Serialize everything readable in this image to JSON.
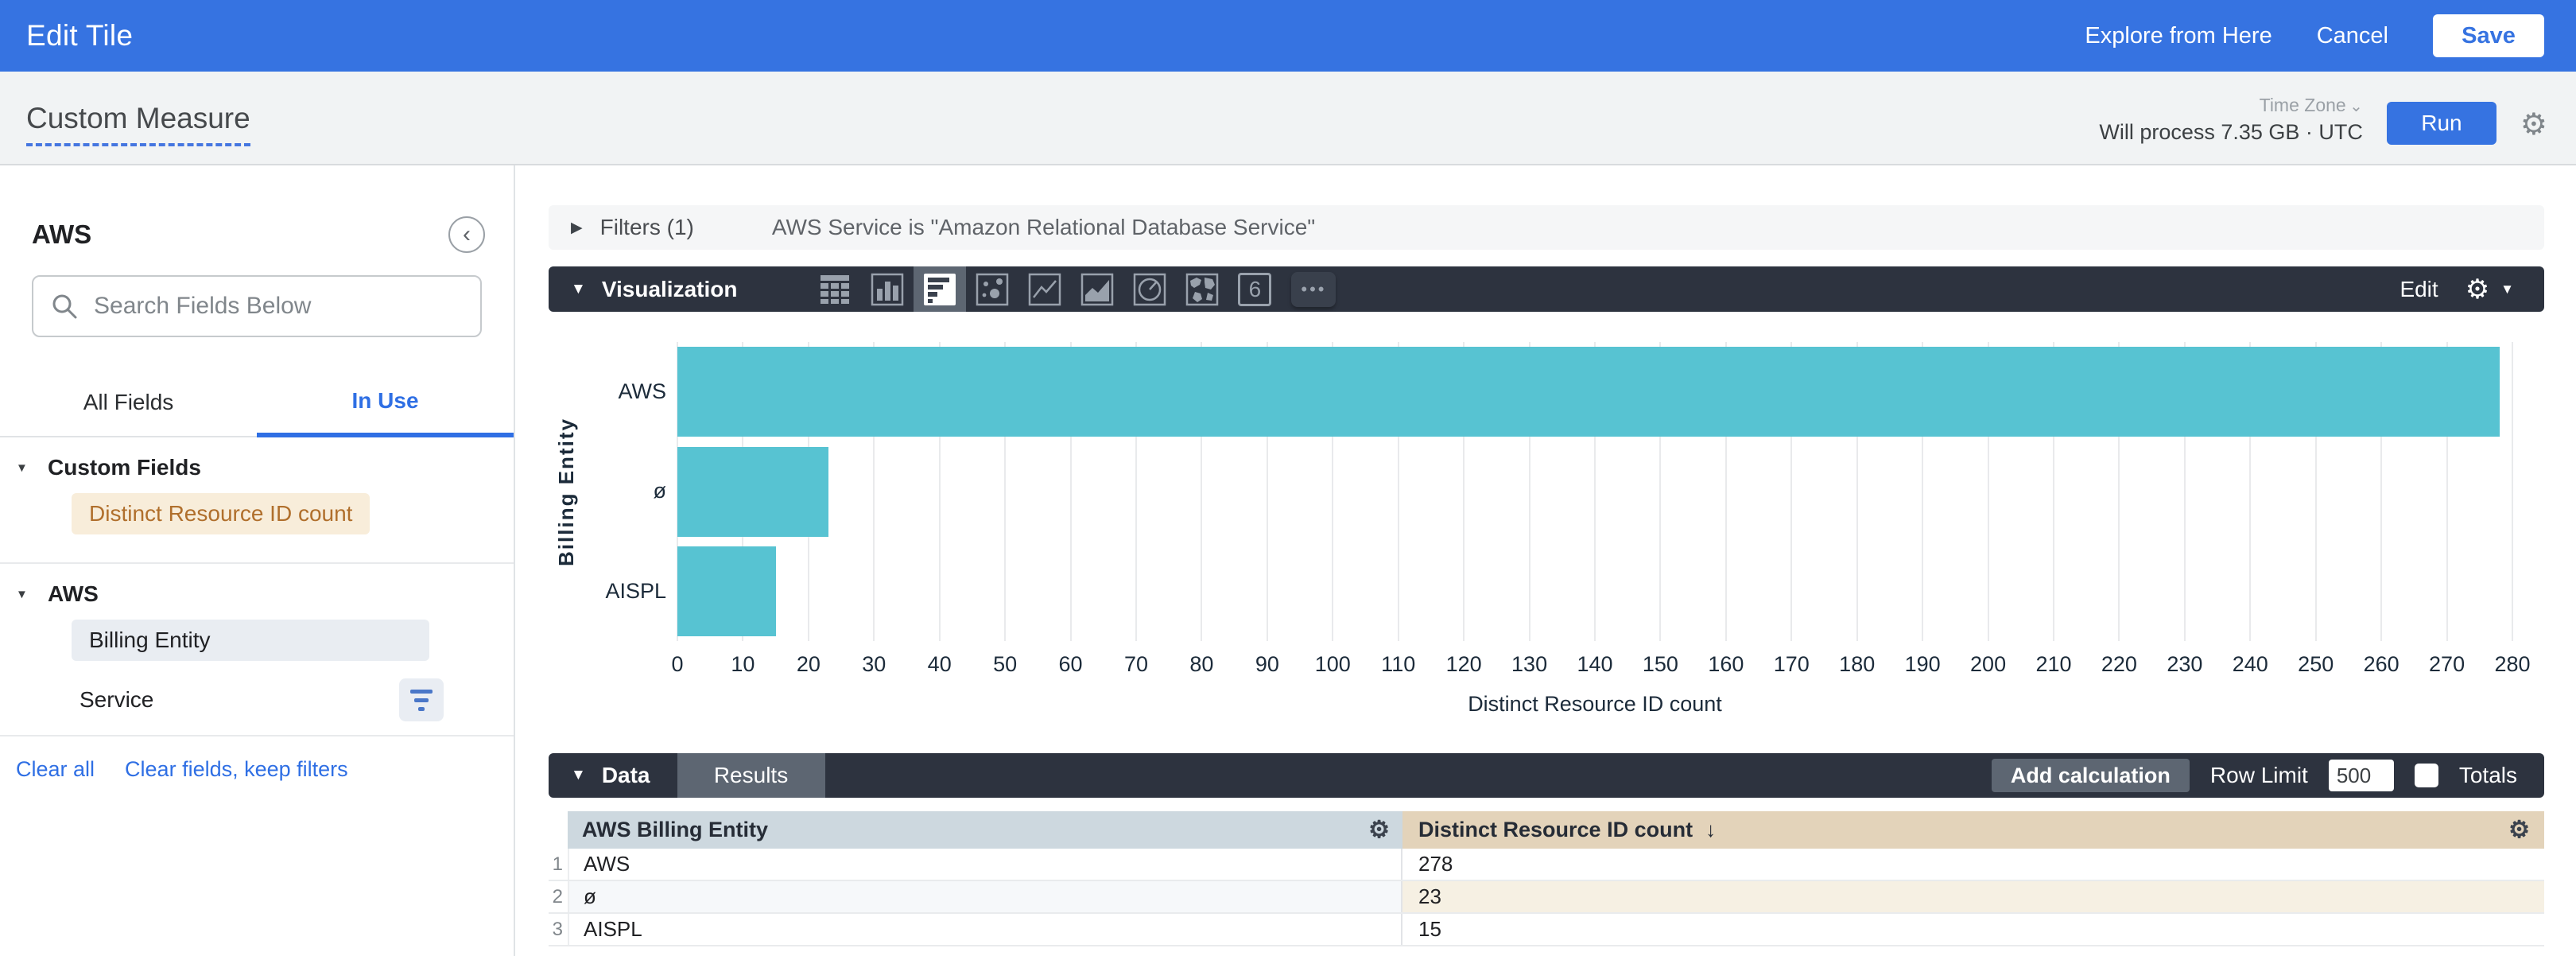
{
  "icons": {
    "caret_right": "▶",
    "caret_down": "▼",
    "chevron_small_down": "⌄",
    "chevron_left": "‹",
    "gear": "⚙",
    "dots": "•••",
    "arrow_down": "↓"
  },
  "top_bar": {
    "title": "Edit Tile",
    "explore": "Explore from Here",
    "cancel": "Cancel",
    "save": "Save"
  },
  "header": {
    "title": "Custom Measure",
    "timezone_label": "Time Zone",
    "process_note": "Will process 7.35 GB · UTC",
    "run": "Run"
  },
  "sidebar": {
    "title": "AWS",
    "search_placeholder": "Search Fields Below",
    "tabs": [
      {
        "label": "All Fields",
        "active": false
      },
      {
        "label": "In Use",
        "active": true
      }
    ],
    "sections": [
      {
        "title": "Custom Fields",
        "items": [
          {
            "label": "Distinct Resource ID count",
            "kind": "measure"
          }
        ]
      },
      {
        "title": "AWS",
        "items": [
          {
            "label": "Billing Entity",
            "kind": "dimension-selected"
          },
          {
            "label": "Service",
            "kind": "plain-with-filter"
          }
        ]
      }
    ],
    "footer_links": [
      "Clear all",
      "Clear fields, keep filters"
    ]
  },
  "filters": {
    "label": "Filters (1)",
    "summary": "AWS Service is \"Amazon Relational Database Service\""
  },
  "visualization": {
    "label": "Visualization",
    "icons": [
      "table",
      "column-chart",
      "bar-chart",
      "scatterplot",
      "line-chart",
      "area-chart",
      "pie-chart",
      "map",
      "single-value",
      "more"
    ],
    "selected": "bar-chart",
    "single_value_glyph": "6",
    "edit": "Edit"
  },
  "chart_data": {
    "type": "bar",
    "orientation": "horizontal",
    "categories": [
      "AWS",
      "ø",
      "AISPL"
    ],
    "values": [
      278,
      23,
      15
    ],
    "title": "",
    "xlabel": "Distinct Resource ID count",
    "ylabel": "Billing Entity",
    "xlim": [
      0,
      280
    ],
    "xtick_step": 10,
    "grid": true,
    "legend": false,
    "bar_color": "#57c3d2"
  },
  "data_section": {
    "label": "Data",
    "tab": "Results",
    "add_calculation": "Add calculation",
    "row_limit_label": "Row Limit",
    "row_limit_value": "500",
    "totals_label": "Totals",
    "table": {
      "columns": [
        "AWS Billing Entity",
        "Distinct Resource ID count"
      ],
      "sort_arrow": "↓",
      "rows": [
        {
          "n": "1",
          "dim": "AWS",
          "val": "278"
        },
        {
          "n": "2",
          "dim": "ø",
          "val": "23"
        },
        {
          "n": "3",
          "dim": "AISPL",
          "val": "15"
        }
      ]
    }
  },
  "colors": {
    "accent_blue": "#3673e1",
    "toolbar_navy": "#2d333f",
    "toolbar_highlight": "#5d6672",
    "bar_teal": "#57c3d2",
    "measure_chip_bg": "#f8edda",
    "measure_chip_text": "#b06f2c",
    "dimension_chip_bg": "#e9edf2",
    "dim_header_bg": "#cdd8df",
    "measure_header_bg": "#e3d3ba",
    "header_bg": "#f1f3f4"
  }
}
